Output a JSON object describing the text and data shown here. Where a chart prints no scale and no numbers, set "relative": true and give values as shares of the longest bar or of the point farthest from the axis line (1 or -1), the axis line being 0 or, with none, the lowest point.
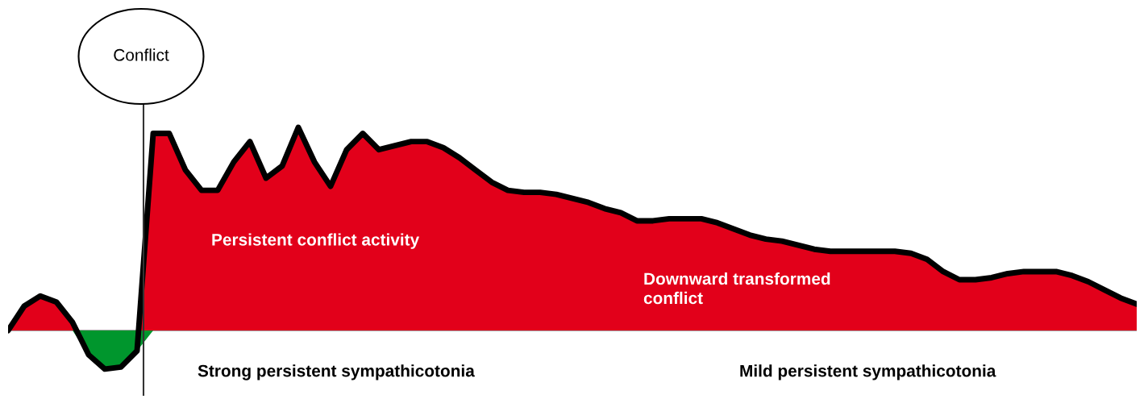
{
  "chart_data": {
    "type": "area",
    "relative": true,
    "categories": [
      null,
      null,
      null,
      null,
      null,
      null,
      null,
      null,
      null,
      null,
      null,
      null,
      null,
      null,
      null,
      null,
      null,
      null,
      null,
      null,
      null,
      null,
      null,
      null,
      null,
      null,
      null,
      null,
      null,
      null,
      null,
      null,
      null,
      null,
      null,
      null,
      null,
      null,
      null,
      null,
      null,
      null,
      null,
      null,
      null,
      null,
      null,
      null,
      null,
      null,
      null,
      null,
      null,
      null,
      null,
      null,
      null,
      null,
      null,
      null,
      null,
      null,
      null,
      null,
      null,
      null,
      null,
      null,
      null,
      null,
      null
    ],
    "series": [
      {
        "color": "#e2001a",
        "values": [
          0,
          0.12,
          0.17,
          0.14,
          0.04,
          -0.12,
          -0.19,
          -0.18,
          -0.1,
          0.97,
          0.97,
          0.79,
          0.69,
          0.69,
          0.83,
          0.93,
          0.75,
          0.81,
          1.0,
          0.83,
          0.71,
          0.89,
          0.97,
          0.89,
          0.91,
          0.93,
          0.93,
          0.9,
          0.85,
          0.79,
          0.73,
          0.69,
          0.68,
          0.68,
          0.67,
          0.65,
          0.63,
          0.6,
          0.58,
          0.54,
          0.54,
          0.55,
          0.55,
          0.55,
          0.53,
          0.5,
          0.47,
          0.45,
          0.44,
          0.42,
          0.4,
          0.39,
          0.39,
          0.39,
          0.39,
          0.39,
          0.38,
          0.35,
          0.29,
          0.25,
          0.25,
          0.26,
          0.28,
          0.29,
          0.29,
          0.29,
          0.27,
          0.24,
          0.2,
          0.16,
          0.13
        ]
      },
      {
        "color": "#00962d",
        "values": [
          null,
          null,
          null,
          null,
          0,
          -0.12,
          -0.19,
          -0.18,
          -0.1,
          0,
          null,
          null,
          null,
          null,
          null,
          null,
          null,
          null,
          null,
          null,
          null,
          null,
          null,
          null,
          null,
          null,
          null,
          null,
          null,
          null,
          null,
          null,
          null,
          null,
          null,
          null,
          null,
          null,
          null,
          null,
          null,
          null,
          null,
          null,
          null,
          null,
          null,
          null,
          null,
          null,
          null,
          null,
          null,
          null,
          null,
          null,
          null,
          null,
          null,
          null,
          null,
          null,
          null,
          null,
          null,
          null,
          null,
          null,
          null,
          null,
          null
        ]
      }
    ],
    "annotations": [
      "Conflict",
      "Persistent conflict activity",
      "Downward transformed\nconflict",
      "Strong persistent sympathicotonia",
      "Mild persistent sympathicotonia"
    ]
  }
}
